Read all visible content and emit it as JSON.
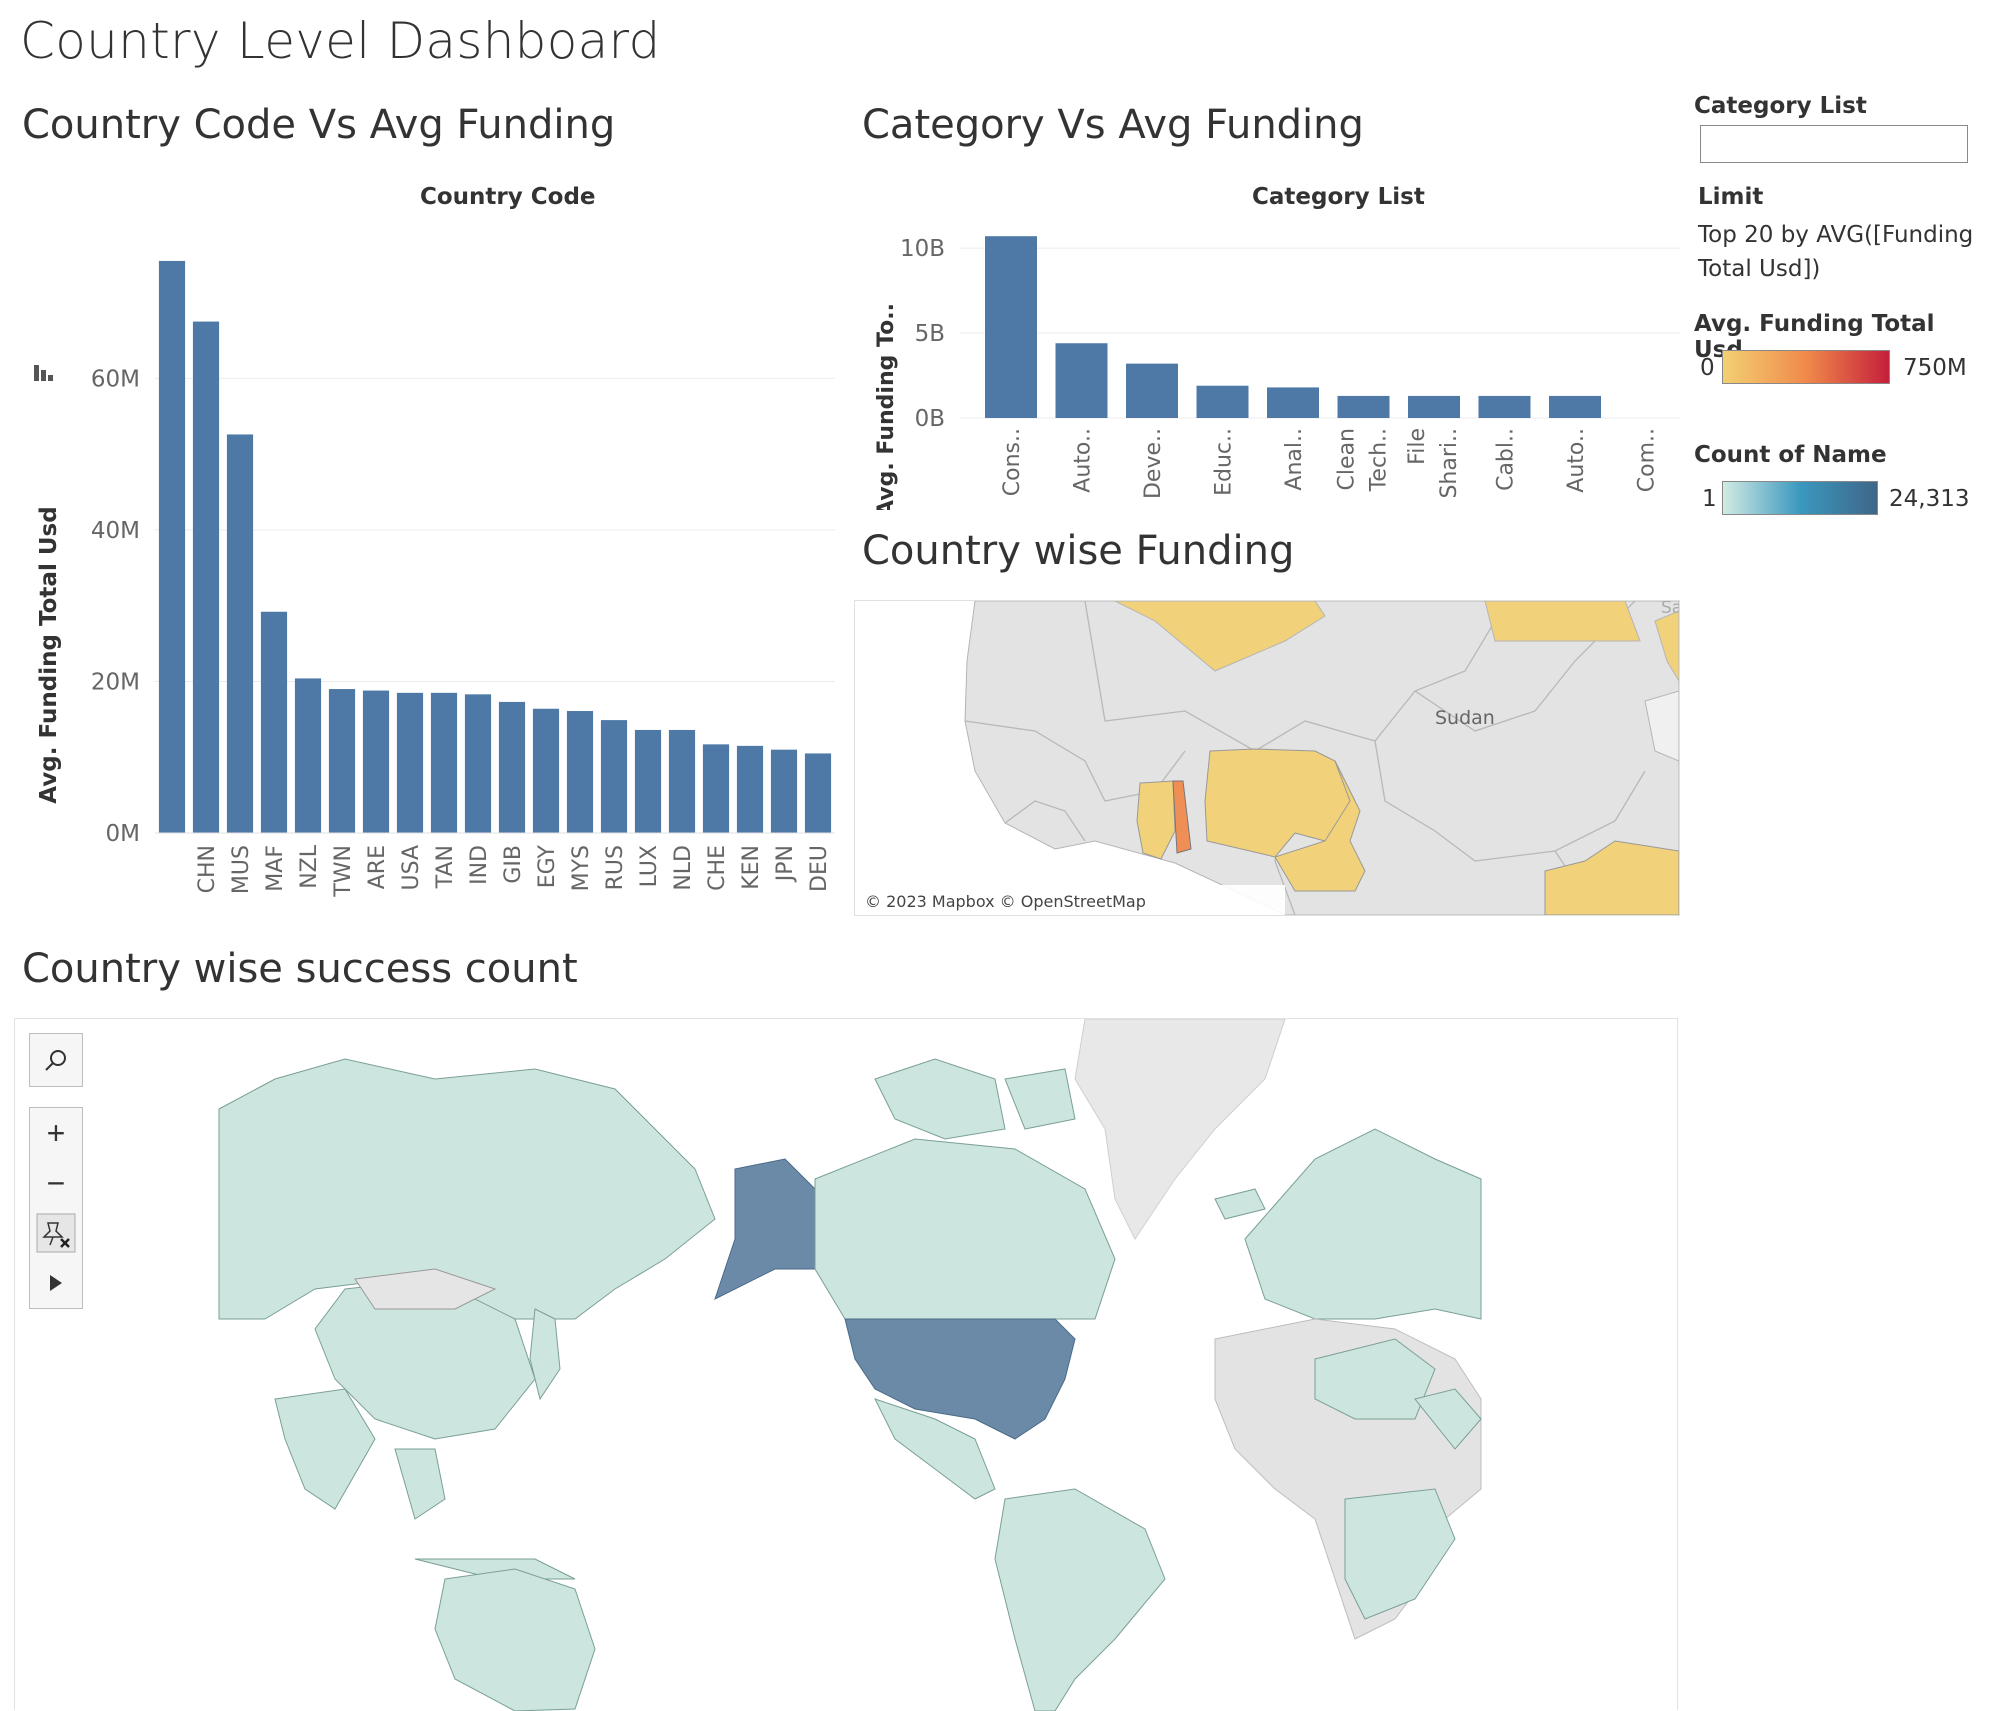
{
  "dashboard": {
    "title": "Country Level Dashboard"
  },
  "sheet1": {
    "title": "Country Code Vs Avg Funding",
    "column_header": "Country Code",
    "ylabel": "Avg. Funding Total Usd",
    "sort_icon": "sort-descending-icon"
  },
  "sheet2": {
    "title": "Category Vs Avg Funding",
    "column_header": "Category List",
    "ylabel": "Avg. Funding To.."
  },
  "sheet3": {
    "title": "Country wise Funding",
    "map_label": "Sudan",
    "map_label_cut": "Sa",
    "attribution": "© 2023 Mapbox © OpenStreetMap"
  },
  "sheet4": {
    "title": "Country wise success count",
    "tools": {
      "search": "search-icon",
      "zoom_in": "plus-icon",
      "zoom_out": "minus-icon",
      "pin": "unpin-icon",
      "expand": "play-icon"
    }
  },
  "filters": {
    "category_list": {
      "label": "Category List",
      "value": ""
    },
    "limit": {
      "label": "Limit",
      "text": "Top 20 by AVG([Funding Total Usd])"
    }
  },
  "legends": {
    "funding": {
      "title": "Avg. Funding Total Usd",
      "min": "0",
      "max": "750M",
      "colors": [
        "#f3d073",
        "#f08a4b",
        "#c51f3b"
      ]
    },
    "count": {
      "title": "Count of Name",
      "min": "1",
      "max": "24,313",
      "colors": [
        "#d2ebe3",
        "#3b98bf",
        "#3e6689"
      ]
    }
  },
  "chart_data": [
    {
      "type": "bar",
      "title": "Country Code Vs Avg Funding",
      "xlabel": "Country Code",
      "ylabel": "Avg. Funding Total Usd",
      "categories": [
        "",
        "CHN",
        "MUS",
        "MAF",
        "NZL",
        "TWN",
        "ARE",
        "USA",
        "TAN",
        "IND",
        "GIB",
        "EGY",
        "MYS",
        "RUS",
        "LUX",
        "NLD",
        "CHE",
        "KEN",
        "JPN",
        "DEU"
      ],
      "values": [
        75.5,
        67.5,
        52.6,
        29.2,
        20.4,
        19.0,
        18.8,
        18.5,
        18.5,
        18.3,
        17.3,
        16.4,
        16.1,
        14.9,
        13.6,
        13.6,
        11.7,
        11.5,
        11.0,
        10.5
      ],
      "yticks": [
        "0M",
        "20M",
        "40M",
        "60M"
      ],
      "ylim": [
        0,
        78
      ],
      "color": "#4e79a7",
      "grid": true
    },
    {
      "type": "bar",
      "title": "Category Vs Avg Funding",
      "xlabel": "Category List",
      "ylabel": "Avg. Funding To..",
      "categories": [
        "Cons..",
        "Auto..",
        "Deve..",
        "Educ..",
        "Anal..",
        "Clean Tech..",
        "File Shari..",
        "Cabl..",
        "Auto..",
        "Com.."
      ],
      "values": [
        10.7,
        4.4,
        3.2,
        1.9,
        1.8,
        1.3,
        1.3,
        1.3,
        1.3,
        0
      ],
      "yticks": [
        "0B",
        "5B",
        "10B"
      ],
      "ylim": [
        0,
        11.3
      ],
      "color": "#4e79a7",
      "grid": true
    }
  ]
}
